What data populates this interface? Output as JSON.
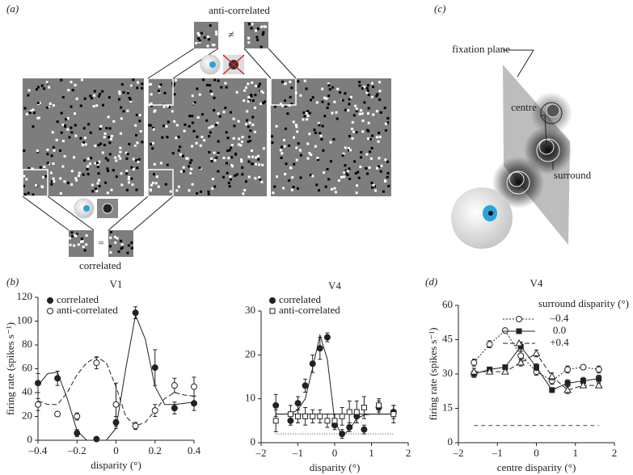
{
  "figure": {
    "panel_labels": [
      "(a)",
      "(b)",
      "(c)",
      "(d)"
    ],
    "panel_a": {
      "top_label": "anti-correlated",
      "bottom_label": "correlated",
      "not_equal": "≠",
      "equal": "="
    },
    "panel_c": {
      "plane_label": "fixation plane",
      "centre_label": "centre",
      "surround_label": "surround"
    }
  },
  "chart_data": [
    {
      "type": "line",
      "title": "V1",
      "xlabel": "disparity (°)",
      "ylabel": "firing rate (spikes s⁻¹)",
      "xlim": [
        -0.4,
        0.4
      ],
      "ylim": [
        0,
        120
      ],
      "xticks": [
        {
          "value": -0.4,
          "label": "–0.4"
        },
        {
          "value": -0.2,
          "label": "–0.2"
        },
        0,
        0.2,
        0.4
      ],
      "yticks": [
        0,
        20,
        40,
        60,
        80,
        100,
        120
      ],
      "x": [
        -0.4,
        -0.3,
        -0.2,
        -0.1,
        0,
        0.1,
        0.2,
        0.3,
        0.4
      ],
      "series": [
        {
          "name": "correlated",
          "color": "#222",
          "marker": "filled-circle",
          "dash": "solid",
          "values": [
            48,
            52,
            6,
            1,
            15,
            107,
            61,
            27,
            31
          ],
          "errors": [
            8,
            6,
            3,
            1,
            5,
            5,
            15,
            5,
            6
          ],
          "fit": {
            "x": [
              -0.4,
              -0.35,
              -0.3,
              -0.25,
              -0.2,
              -0.15,
              -0.1,
              -0.05,
              0,
              0.05,
              0.1,
              0.15,
              0.2,
              0.25,
              0.3,
              0.35,
              0.4
            ],
            "values": [
              46,
              56,
              57,
              35,
              8,
              0,
              0,
              0,
              10,
              60,
              105,
              85,
              45,
              30,
              30,
              31,
              32
            ]
          }
        },
        {
          "name": "anti-correlated",
          "color": "#222",
          "marker": "open-circle",
          "dash": "dashed",
          "values": [
            30,
            22,
            20,
            65,
            30,
            12,
            25,
            46,
            45
          ],
          "errors": [
            5,
            2,
            3,
            5,
            18,
            3,
            5,
            6,
            8
          ],
          "fit": {
            "x": [
              -0.4,
              -0.35,
              -0.3,
              -0.25,
              -0.2,
              -0.15,
              -0.1,
              -0.05,
              0,
              0.05,
              0.1,
              0.15,
              0.2,
              0.25,
              0.3,
              0.35,
              0.4
            ],
            "values": [
              33,
              30,
              30,
              40,
              55,
              65,
              70,
              65,
              45,
              20,
              12,
              15,
              25,
              35,
              40,
              38,
              37
            ]
          }
        }
      ]
    },
    {
      "type": "line",
      "title": "V4",
      "xlabel": "disparity (°)",
      "xlim": [
        -2,
        2
      ],
      "ylim": [
        0,
        30
      ],
      "xticks": [
        {
          "value": -2,
          "label": "–2"
        },
        {
          "value": -1,
          "label": "–1"
        },
        0,
        1,
        2
      ],
      "yticks": [
        0,
        10,
        20,
        30
      ],
      "baseline": 2,
      "x": [
        -1.6,
        -1.2,
        -1,
        -0.8,
        -0.6,
        -0.4,
        -0.2,
        0,
        0.2,
        0.4,
        0.6,
        0.8,
        1.2,
        1.6
      ],
      "series": [
        {
          "name": "correlated",
          "color": "#222",
          "marker": "filled-circle",
          "dash": "solid",
          "values": [
            8.5,
            5,
            9,
            13,
            18,
            21.5,
            24,
            4,
            2,
            3.5,
            6,
            3,
            8,
            7
          ],
          "errors": [
            2.5,
            1,
            1.5,
            1.5,
            2,
            2.5,
            1,
            1,
            1,
            1,
            1.5,
            1,
            1.5,
            1.5
          ],
          "fit": {
            "x": [
              -1.6,
              -1.4,
              -1.2,
              -1,
              -0.8,
              -0.6,
              -0.4,
              -0.2,
              0,
              0.2,
              0.4,
              0.6,
              0.8,
              1,
              1.2,
              1.4,
              1.6
            ],
            "values": [
              6.5,
              6.5,
              6.6,
              7.5,
              10,
              17,
              24.5,
              19,
              5,
              1.5,
              3,
              5.5,
              6.3,
              6.5,
              6.5,
              6.5,
              6.5
            ]
          }
        },
        {
          "name": "anti-correlated",
          "color": "#222",
          "marker": "open-square",
          "dash": "solid",
          "values": [
            5,
            6.5,
            6,
            6,
            6,
            6,
            5,
            5,
            6,
            7,
            7,
            8,
            8.5,
            6.5
          ],
          "errors": [
            2.5,
            2,
            1.5,
            2,
            1.5,
            1.5,
            1.5,
            1.5,
            2,
            2.5,
            2.5,
            2.5,
            1.5,
            2
          ],
          "fit": {
            "x": [
              -1.6,
              1.6
            ],
            "values": [
              6.5,
              6.5
            ]
          }
        }
      ]
    },
    {
      "type": "line",
      "title": "V4",
      "xlabel": "centre disparity (°)",
      "ylabel": "firing rate (spikes s⁻¹)",
      "legend_title": "surround disparity (°)",
      "xlim": [
        -2,
        2
      ],
      "ylim": [
        0,
        60
      ],
      "xticks": [
        {
          "value": -2,
          "label": "–2"
        },
        {
          "value": -1,
          "label": "–1"
        },
        0,
        1,
        2
      ],
      "yticks": [
        0,
        15,
        30,
        45,
        60
      ],
      "baseline": 7.5,
      "x": [
        -1.6,
        -1.2,
        -0.8,
        -0.4,
        0,
        0.4,
        0.8,
        1.2,
        1.6
      ],
      "series": [
        {
          "name": "–0.4",
          "color": "#222",
          "marker": "open-circle",
          "dash": "dotted",
          "values": [
            35,
            43,
            49,
            38,
            31,
            27,
            32,
            33,
            32
          ],
          "errors": [
            1.5,
            1.5,
            1,
            2,
            1.5,
            1.5,
            1.5,
            1,
            1.5
          ]
        },
        {
          "name": "0.0",
          "color": "#222",
          "marker": "filled-square",
          "dash": "solid",
          "values": [
            30,
            32,
            33,
            42,
            33,
            23,
            26,
            27,
            28
          ],
          "errors": [
            1.5,
            1,
            1,
            2,
            1.5,
            1,
            1.5,
            1.5,
            1.5
          ]
        },
        {
          "name": "+0.4",
          "color": "#222",
          "marker": "open-triangle",
          "dash": "dashed",
          "values": [
            31,
            31,
            31,
            35,
            39,
            29,
            23,
            25,
            25
          ],
          "errors": [
            1.5,
            1,
            1,
            1.5,
            1.5,
            1.5,
            1.5,
            1,
            1
          ]
        }
      ]
    }
  ]
}
